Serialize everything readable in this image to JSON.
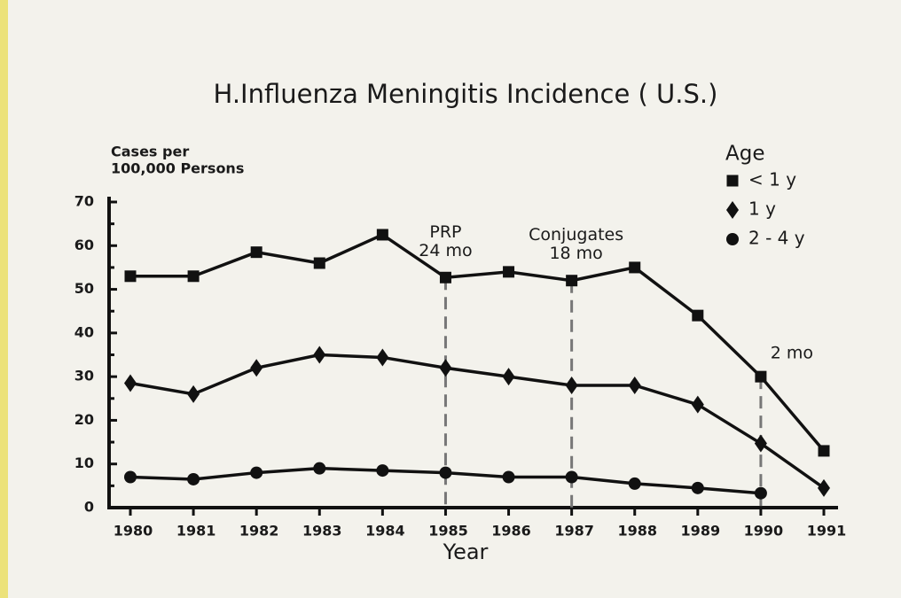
{
  "chart_data": {
    "type": "line",
    "title": "H.Influenza Meningitis Incidence ( U.S.)",
    "ylabel": [
      "Cases per",
      "100,000 Persons"
    ],
    "xlabel": "Year",
    "categories": [
      "1980",
      "1981",
      "1982",
      "1983",
      "1984",
      "1985",
      "1986",
      "1987",
      "1988",
      "1989",
      "1990",
      "1991"
    ],
    "ylim": [
      0,
      70
    ],
    "yticks": [
      0,
      10,
      20,
      30,
      40,
      50,
      60,
      70
    ],
    "legend": {
      "title": "Age",
      "position": "top-right"
    },
    "series": [
      {
        "name": "< 1 y",
        "color": "#111111",
        "marker": "square",
        "values": [
          53,
          53,
          58.5,
          56,
          62.5,
          52.7,
          54,
          52,
          55,
          44,
          30,
          13
        ]
      },
      {
        "name": "1 y",
        "color": "#111111",
        "marker": "diamond",
        "values": [
          28.5,
          26,
          32,
          35,
          34.4,
          32,
          30,
          28,
          28,
          23.6,
          14.7,
          4.5
        ]
      },
      {
        "name": "2 - 4 y",
        "color": "#111111",
        "marker": "circle",
        "values": [
          7,
          6.5,
          8,
          9,
          8.5,
          8,
          7,
          7,
          5.5,
          4.5,
          3.3,
          null
        ]
      }
    ],
    "annotations": [
      {
        "x": "1985",
        "text": [
          "PRP",
          "24 mo"
        ]
      },
      {
        "x": "1987",
        "text": [
          "Conjugates",
          "18 mo"
        ]
      },
      {
        "x": "1990",
        "text": [
          "2 mo"
        ]
      }
    ]
  }
}
